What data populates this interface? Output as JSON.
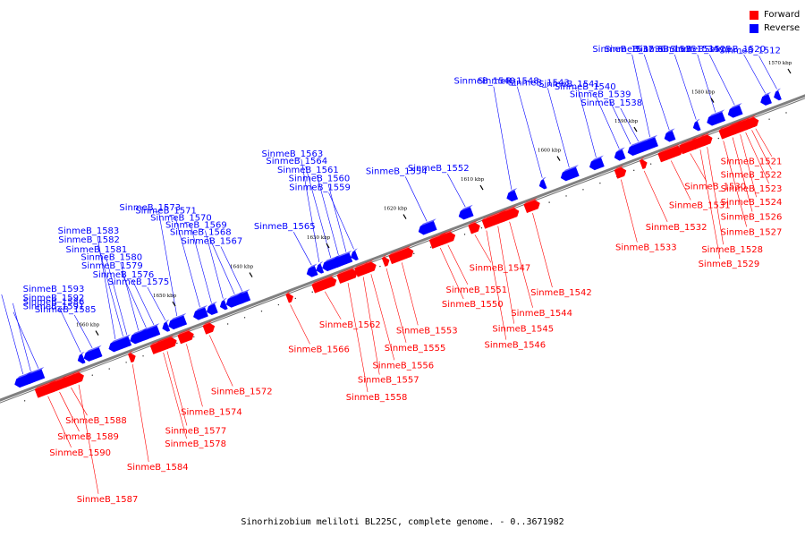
{
  "legend": [
    {
      "label": "Forward",
      "color": "#ff0000"
    },
    {
      "label": "Reverse",
      "color": "#0000ff"
    }
  ],
  "footer": "Sinorhizobium meliloti BL225C, complete genome. - 0..3671982",
  "colors": {
    "forward": "#ff0000",
    "reverse": "#0000ff",
    "axis": "#808080"
  },
  "ticks": [
    {
      "label": "1570 kbp",
      "offset_bp": 0
    },
    {
      "label": "1580 kbp",
      "offset_bp": 10000
    },
    {
      "label": "1590 kbp",
      "offset_bp": 20000
    },
    {
      "label": "1600 kbp",
      "offset_bp": 30000
    },
    {
      "label": "1610 kbp",
      "offset_bp": 40000
    },
    {
      "label": "1620 kbp",
      "offset_bp": 50000
    },
    {
      "label": "1630 kbp",
      "offset_bp": 60000
    },
    {
      "label": "1640 kbp",
      "offset_bp": 70000
    },
    {
      "label": "1650 kbp",
      "offset_bp": 80000
    },
    {
      "label": "1660 kbp",
      "offset_bp": 90000
    }
  ],
  "genes": [
    {
      "name": "SinmeB_1512",
      "strand": "reverse",
      "kbp": 1.5
    },
    {
      "name": "SinmeB_1520",
      "strand": "reverse",
      "kbp": 3.0
    },
    {
      "name": "SinmeB_1525",
      "strand": "reverse",
      "kbp": 7.0
    },
    {
      "name": "SinmeB_1534",
      "strand": "reverse",
      "kbp": 9.5
    },
    {
      "name": "SinmeB_1535",
      "strand": "reverse",
      "kbp": 12.0
    },
    {
      "name": "SinmeB_1536",
      "strand": "reverse",
      "kbp": 15.5
    },
    {
      "name": "SinmeB_1537",
      "strand": "reverse",
      "kbp": 18.0
    },
    {
      "name": "SinmeB_1538",
      "strand": "reverse",
      "kbp": 19.5
    },
    {
      "name": "SinmeB_1539",
      "strand": "reverse",
      "kbp": 20.5
    },
    {
      "name": "SinmeB_1540",
      "strand": "reverse",
      "kbp": 22.0
    },
    {
      "name": "SinmeB_1541",
      "strand": "reverse",
      "kbp": 25.0
    },
    {
      "name": "SinmeB_1543",
      "strand": "reverse",
      "kbp": 28.5
    },
    {
      "name": "SinmeB_1548",
      "strand": "reverse",
      "kbp": 32.0
    },
    {
      "name": "SinmeB_1549",
      "strand": "reverse",
      "kbp": 36.0
    },
    {
      "name": "SinmeB_1552",
      "strand": "reverse",
      "kbp": 42.0
    },
    {
      "name": "SinmeB_1554",
      "strand": "reverse",
      "kbp": 47.0
    },
    {
      "name": "SinmeB_1559",
      "strand": "reverse",
      "kbp": 56.5
    },
    {
      "name": "SinmeB_1560",
      "strand": "reverse",
      "kbp": 57.5
    },
    {
      "name": "SinmeB_1561",
      "strand": "reverse",
      "kbp": 58.5
    },
    {
      "name": "SinmeB_1564",
      "strand": "reverse",
      "kbp": 59.5
    },
    {
      "name": "SinmeB_1563",
      "strand": "reverse",
      "kbp": 61.0
    },
    {
      "name": "SinmeB_1565",
      "strand": "reverse",
      "kbp": 62.0
    },
    {
      "name": "SinmeB_1567",
      "strand": "reverse",
      "kbp": 71.0
    },
    {
      "name": "SinmeB_1568",
      "strand": "reverse",
      "kbp": 72.0
    },
    {
      "name": "SinmeB_1569",
      "strand": "reverse",
      "kbp": 73.5
    },
    {
      "name": "SinmeB_1570",
      "strand": "reverse",
      "kbp": 75.0
    },
    {
      "name": "SinmeB_1571",
      "strand": "reverse",
      "kbp": 76.5
    },
    {
      "name": "SinmeB_1573",
      "strand": "reverse",
      "kbp": 79.5
    },
    {
      "name": "SinmeB_1575",
      "strand": "reverse",
      "kbp": 81.0
    },
    {
      "name": "SinmeB_1576",
      "strand": "reverse",
      "kbp": 82.5
    },
    {
      "name": "SinmeB_1579",
      "strand": "reverse",
      "kbp": 83.5
    },
    {
      "name": "SinmeB_1580",
      "strand": "reverse",
      "kbp": 84.5
    },
    {
      "name": "SinmeB_1581",
      "strand": "reverse",
      "kbp": 86.0
    },
    {
      "name": "SinmeB_1582",
      "strand": "reverse",
      "kbp": 86.5
    },
    {
      "name": "SinmeB_1583",
      "strand": "reverse",
      "kbp": 87.5
    },
    {
      "name": "SinmeB_1585",
      "strand": "reverse",
      "kbp": 90.5
    },
    {
      "name": "SinmeB_1586",
      "strand": "reverse",
      "kbp": 92.0
    },
    {
      "name": "SinmeB_1591",
      "strand": "reverse",
      "kbp": 97.5
    },
    {
      "name": "SinmeB_1592",
      "strand": "reverse",
      "kbp": 98.5
    },
    {
      "name": "SinmeB_1593",
      "strand": "reverse",
      "kbp": 99.5
    },
    {
      "name": "SinmeB_1521",
      "strand": "forward",
      "kbp": 5.0
    },
    {
      "name": "SinmeB_1522",
      "strand": "forward",
      "kbp": 5.5
    },
    {
      "name": "SinmeB_1523",
      "strand": "forward",
      "kbp": 6.3
    },
    {
      "name": "SinmeB_1524",
      "strand": "forward",
      "kbp": 7.0
    },
    {
      "name": "SinmeB_1526",
      "strand": "forward",
      "kbp": 8.0
    },
    {
      "name": "SinmeB_1527",
      "strand": "forward",
      "kbp": 9.2
    },
    {
      "name": "SinmeB_1528",
      "strand": "forward",
      "kbp": 11.3
    },
    {
      "name": "SinmeB_1529",
      "strand": "forward",
      "kbp": 12.2
    },
    {
      "name": "SinmeB_1530",
      "strand": "forward",
      "kbp": 13.5
    },
    {
      "name": "SinmeB_1531",
      "strand": "forward",
      "kbp": 16.0
    },
    {
      "name": "SinmeB_1532",
      "strand": "forward",
      "kbp": 19.5
    },
    {
      "name": "SinmeB_1533",
      "strand": "forward",
      "kbp": 22.5
    },
    {
      "name": "SinmeB_1542",
      "strand": "forward",
      "kbp": 34.0
    },
    {
      "name": "SinmeB_1544",
      "strand": "forward",
      "kbp": 37.0
    },
    {
      "name": "SinmeB_1545",
      "strand": "forward",
      "kbp": 38.5
    },
    {
      "name": "SinmeB_1546",
      "strand": "forward",
      "kbp": 40.0
    },
    {
      "name": "SinmeB_1547",
      "strand": "forward",
      "kbp": 41.5
    },
    {
      "name": "SinmeB_1551",
      "strand": "forward",
      "kbp": 45.0
    },
    {
      "name": "SinmeB_1550",
      "strand": "forward",
      "kbp": 46.0
    },
    {
      "name": "SinmeB_1553",
      "strand": "forward",
      "kbp": 51.0
    },
    {
      "name": "SinmeB_1555",
      "strand": "forward",
      "kbp": 53.0
    },
    {
      "name": "SinmeB_1556",
      "strand": "forward",
      "kbp": 55.0
    },
    {
      "name": "SinmeB_1557",
      "strand": "forward",
      "kbp": 56.0
    },
    {
      "name": "SinmeB_1558",
      "strand": "forward",
      "kbp": 58.0
    },
    {
      "name": "SinmeB_1562",
      "strand": "forward",
      "kbp": 61.0
    },
    {
      "name": "SinmeB_1566",
      "strand": "forward",
      "kbp": 65.5
    },
    {
      "name": "SinmeB_1572",
      "strand": "forward",
      "kbp": 76.0
    },
    {
      "name": "SinmeB_1574",
      "strand": "forward",
      "kbp": 79.0
    },
    {
      "name": "SinmeB_1577",
      "strand": "forward",
      "kbp": 81.5
    },
    {
      "name": "SinmeB_1578",
      "strand": "forward",
      "kbp": 82.0
    },
    {
      "name": "SinmeB_1584",
      "strand": "forward",
      "kbp": 86.0
    },
    {
      "name": "SinmeB_1587",
      "strand": "forward",
      "kbp": 93.0
    },
    {
      "name": "SinmeB_1588",
      "strand": "forward",
      "kbp": 94.0
    },
    {
      "name": "SinmeB_1589",
      "strand": "forward",
      "kbp": 95.5
    },
    {
      "name": "SinmeB_1590",
      "strand": "forward",
      "kbp": 97.0
    }
  ]
}
